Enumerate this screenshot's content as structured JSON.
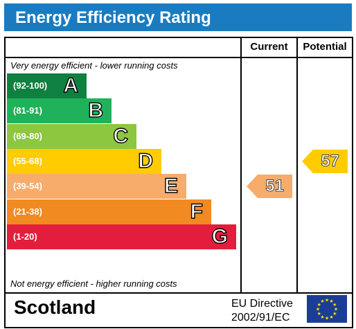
{
  "title": "Energy Efficiency Rating",
  "headers": {
    "current": "Current",
    "potential": "Potential"
  },
  "notes": {
    "top": "Very energy efficient - lower running costs",
    "bottom": "Not energy efficient - higher running costs"
  },
  "chart_data": {
    "type": "bar",
    "categories": [
      "A",
      "B",
      "C",
      "D",
      "E",
      "F",
      "G"
    ],
    "ranges": [
      "(92-100)",
      "(81-91)",
      "(69-80)",
      "(55-68)",
      "(39-54)",
      "(21-38)",
      "(1-20)"
    ],
    "colors": [
      "#108040",
      "#1fb25a",
      "#8dc63f",
      "#ffcc00",
      "#f7ac6b",
      "#f18a21",
      "#e31d3c"
    ],
    "current": {
      "value": 51,
      "band": "E",
      "color": "#f7ac6b"
    },
    "potential": {
      "value": 57,
      "band": "D",
      "color": "#ffcc00"
    }
  },
  "footer": {
    "region": "Scotland",
    "directive_line1": "EU Directive",
    "directive_line2": "2002/91/EC"
  },
  "flag_icon": "eu-flag-icon"
}
